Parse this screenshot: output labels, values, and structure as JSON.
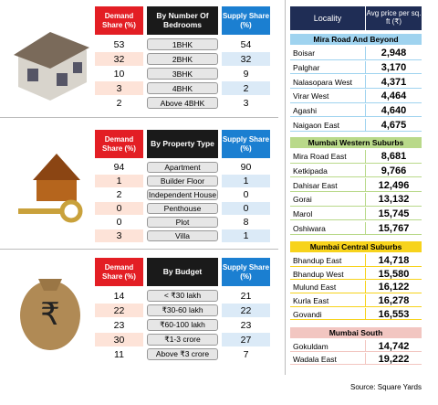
{
  "left_tables": [
    {
      "headers": [
        "Demand Share (%)",
        "By Number Of Bedrooms",
        "Supply Share (%)"
      ],
      "rows": [
        [
          53,
          "1BHK",
          54
        ],
        [
          32,
          "2BHK",
          32
        ],
        [
          10,
          "3BHK",
          9
        ],
        [
          3,
          "4BHK",
          2
        ],
        [
          2,
          "Above 4BHK",
          3
        ]
      ]
    },
    {
      "headers": [
        "Demand Share (%)",
        "By Property Type",
        "Supply Share (%)"
      ],
      "rows": [
        [
          94,
          "Apartment",
          90
        ],
        [
          1,
          "Builder Floor",
          1
        ],
        [
          2,
          "Independent House",
          0
        ],
        [
          0,
          "Penthouse",
          0
        ],
        [
          0,
          "Plot",
          8
        ],
        [
          3,
          "Villa",
          1
        ]
      ]
    },
    {
      "headers": [
        "Demand Share (%)",
        "By Budget",
        "Supply Share (%)"
      ],
      "rows": [
        [
          14,
          "< ₹30 lakh",
          21
        ],
        [
          22,
          "₹30-60 lakh",
          22
        ],
        [
          23,
          "₹60-100 lakh",
          23
        ],
        [
          30,
          "₹1-3 crore",
          27
        ],
        [
          11,
          "Above ₹3 crore",
          7
        ]
      ]
    }
  ],
  "price_table": {
    "headers": [
      "Locality",
      "Avg price per sq. ft (₹)"
    ],
    "groups": [
      {
        "name": "Mira Road And Beyond",
        "rows": [
          [
            "Boisar",
            "2,948"
          ],
          [
            "Palghar",
            "3,170"
          ],
          [
            "Nalasopara West",
            "4,371"
          ],
          [
            "Virar West",
            "4,464"
          ],
          [
            "Agashi",
            "4,640"
          ],
          [
            "Naigaon East",
            "4,675"
          ]
        ]
      },
      {
        "name": "Mumbai Western Suburbs",
        "rows": [
          [
            "Mira Road East",
            "8,681"
          ],
          [
            "Ketkipada",
            "9,766"
          ],
          [
            "Dahisar East",
            "12,496"
          ],
          [
            "Gorai",
            "13,132"
          ],
          [
            "Marol",
            "15,745"
          ],
          [
            "Oshiwara",
            "15,767"
          ]
        ]
      },
      {
        "name": "Mumbai Central Suburbs",
        "rows": [
          [
            "Bhandup East",
            "14,718"
          ],
          [
            "Bhandup West",
            "15,580"
          ],
          [
            "Mulund East",
            "16,122"
          ],
          [
            "Kurla East",
            "16,278"
          ],
          [
            "Govandi",
            "16,553"
          ]
        ]
      },
      {
        "name": "Mumbai South",
        "rows": [
          [
            "Gokuldam",
            "14,742"
          ],
          [
            "Wadala East",
            "19,222"
          ]
        ]
      }
    ]
  },
  "source": "Source: Square Yards"
}
